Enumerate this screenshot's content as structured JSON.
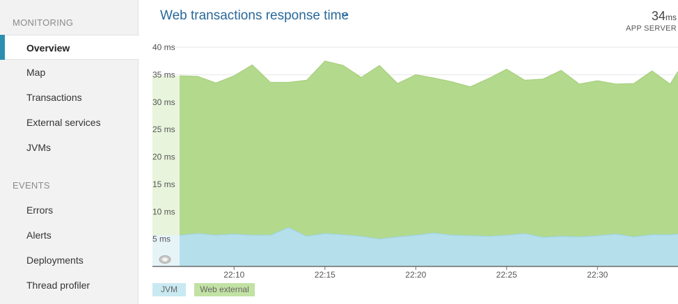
{
  "sidebar": {
    "sections": [
      {
        "title": "MONITORING",
        "items": [
          {
            "label": "Overview",
            "active": true
          },
          {
            "label": "Map"
          },
          {
            "label": "Transactions"
          },
          {
            "label": "External services"
          },
          {
            "label": "JVMs"
          }
        ]
      },
      {
        "title": "EVENTS",
        "items": [
          {
            "label": "Errors"
          },
          {
            "label": "Alerts"
          },
          {
            "label": "Deployments"
          },
          {
            "label": "Thread profiler"
          }
        ]
      }
    ]
  },
  "chart_header": {
    "title": "Web transactions response time",
    "summary_value": "34",
    "summary_unit": "ms",
    "summary_label": "APP SERVER"
  },
  "chart_data": {
    "type": "area",
    "stacked": true,
    "title": "Web transactions response time",
    "y_tick_labels": [
      "40 ms",
      "35 ms",
      "30 ms",
      "25 ms",
      "20 ms",
      "15 ms",
      "10 ms",
      "5 ms"
    ],
    "ylim": [
      0,
      40
    ],
    "x_tick_labels": [
      "22:10",
      "22:15",
      "22:20",
      "22:25",
      "22:30"
    ],
    "x": [
      "22:07",
      "22:08",
      "22:09",
      "22:10",
      "22:11",
      "22:12",
      "22:13",
      "22:14",
      "22:15",
      "22:16",
      "22:17",
      "22:18",
      "22:19",
      "22:20",
      "22:21",
      "22:22",
      "22:23",
      "22:24",
      "22:25",
      "22:26",
      "22:27",
      "22:28",
      "22:29",
      "22:30",
      "22:31",
      "22:32",
      "22:33",
      "22:34",
      "22:35"
    ],
    "series": [
      {
        "name": "JVM",
        "color": "#b5dfeb",
        "values": [
          5.7,
          6.0,
          5.7,
          5.9,
          5.7,
          5.7,
          7.1,
          5.5,
          6.0,
          5.8,
          5.5,
          5.0,
          5.4,
          5.7,
          6.1,
          5.7,
          5.6,
          5.5,
          5.7,
          6.0,
          5.3,
          5.5,
          5.4,
          5.6,
          5.9,
          5.4,
          5.8,
          5.8,
          5.9
        ]
      },
      {
        "name": "Web external",
        "color": "#b3d98c",
        "values": [
          29.1,
          28.7,
          27.8,
          28.9,
          31.1,
          27.9,
          26.5,
          28.5,
          31.5,
          30.9,
          29.0,
          31.7,
          28.0,
          29.3,
          28.3,
          28.0,
          27.2,
          28.8,
          30.3,
          28.0,
          28.9,
          30.3,
          27.9,
          28.3,
          27.4,
          28.0,
          29.9,
          27.5,
          29.7
        ]
      }
    ],
    "grid": true,
    "legend": [
      "JVM",
      "Web external"
    ],
    "legend_placement": "bottom-left"
  },
  "colors": {
    "accent": "#2c8fb0",
    "title": "#28689a",
    "jvm": "#b5dfeb",
    "web_external": "#b3d98c",
    "jvm_line": "#9dd3e3",
    "web_line": "#a3cd7a"
  },
  "icons": {
    "title_dropdown": "chevron-down-icon",
    "zoom_handle": "drag-handle-icon"
  }
}
